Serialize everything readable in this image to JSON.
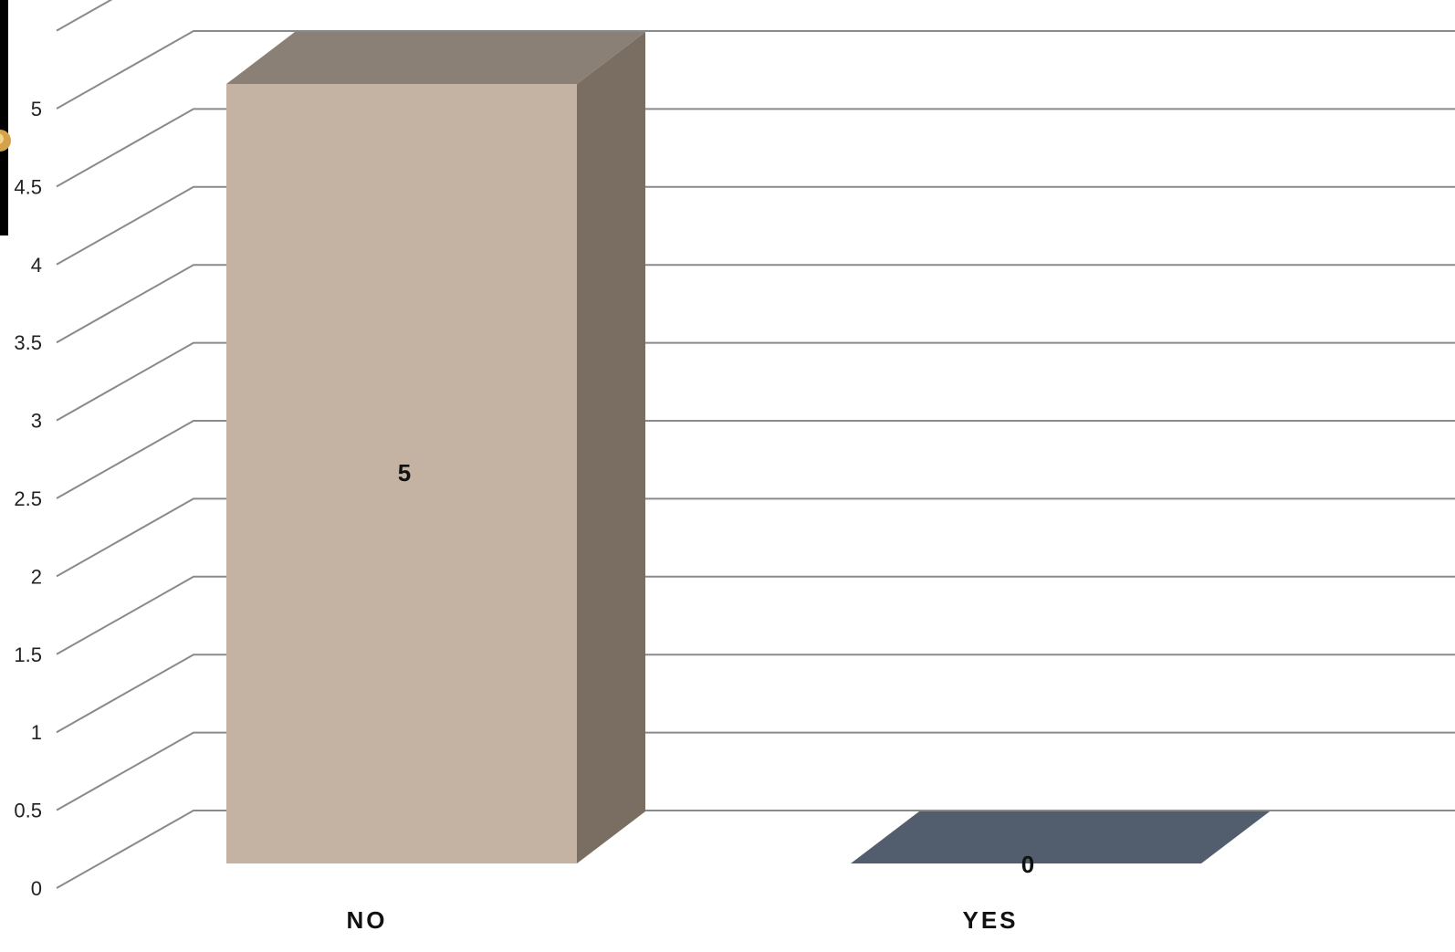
{
  "chart_data": {
    "type": "bar",
    "style": "3d-column",
    "categories": [
      "NO",
      "YES"
    ],
    "values": [
      5,
      0
    ],
    "series": [
      {
        "values": [
          5,
          0
        ]
      }
    ],
    "data_labels": [
      "5",
      "0"
    ],
    "y_ticks": [
      "0",
      "0.5",
      "1",
      "1.5",
      "2",
      "2.5",
      "3",
      "3.5",
      "4",
      "4.5",
      "5"
    ],
    "ylim": [
      0,
      5.5
    ],
    "grid": true,
    "legend": "none",
    "colors": {
      "no_front": "#c4b2a3",
      "no_top": "#8b8076",
      "no_side": "#7a6e63",
      "yes_floor": "#525e6d",
      "gridline": "#8a8a8a"
    }
  },
  "decoration": {
    "left_edge_strip": "black-strip-with-gold-ornament"
  }
}
